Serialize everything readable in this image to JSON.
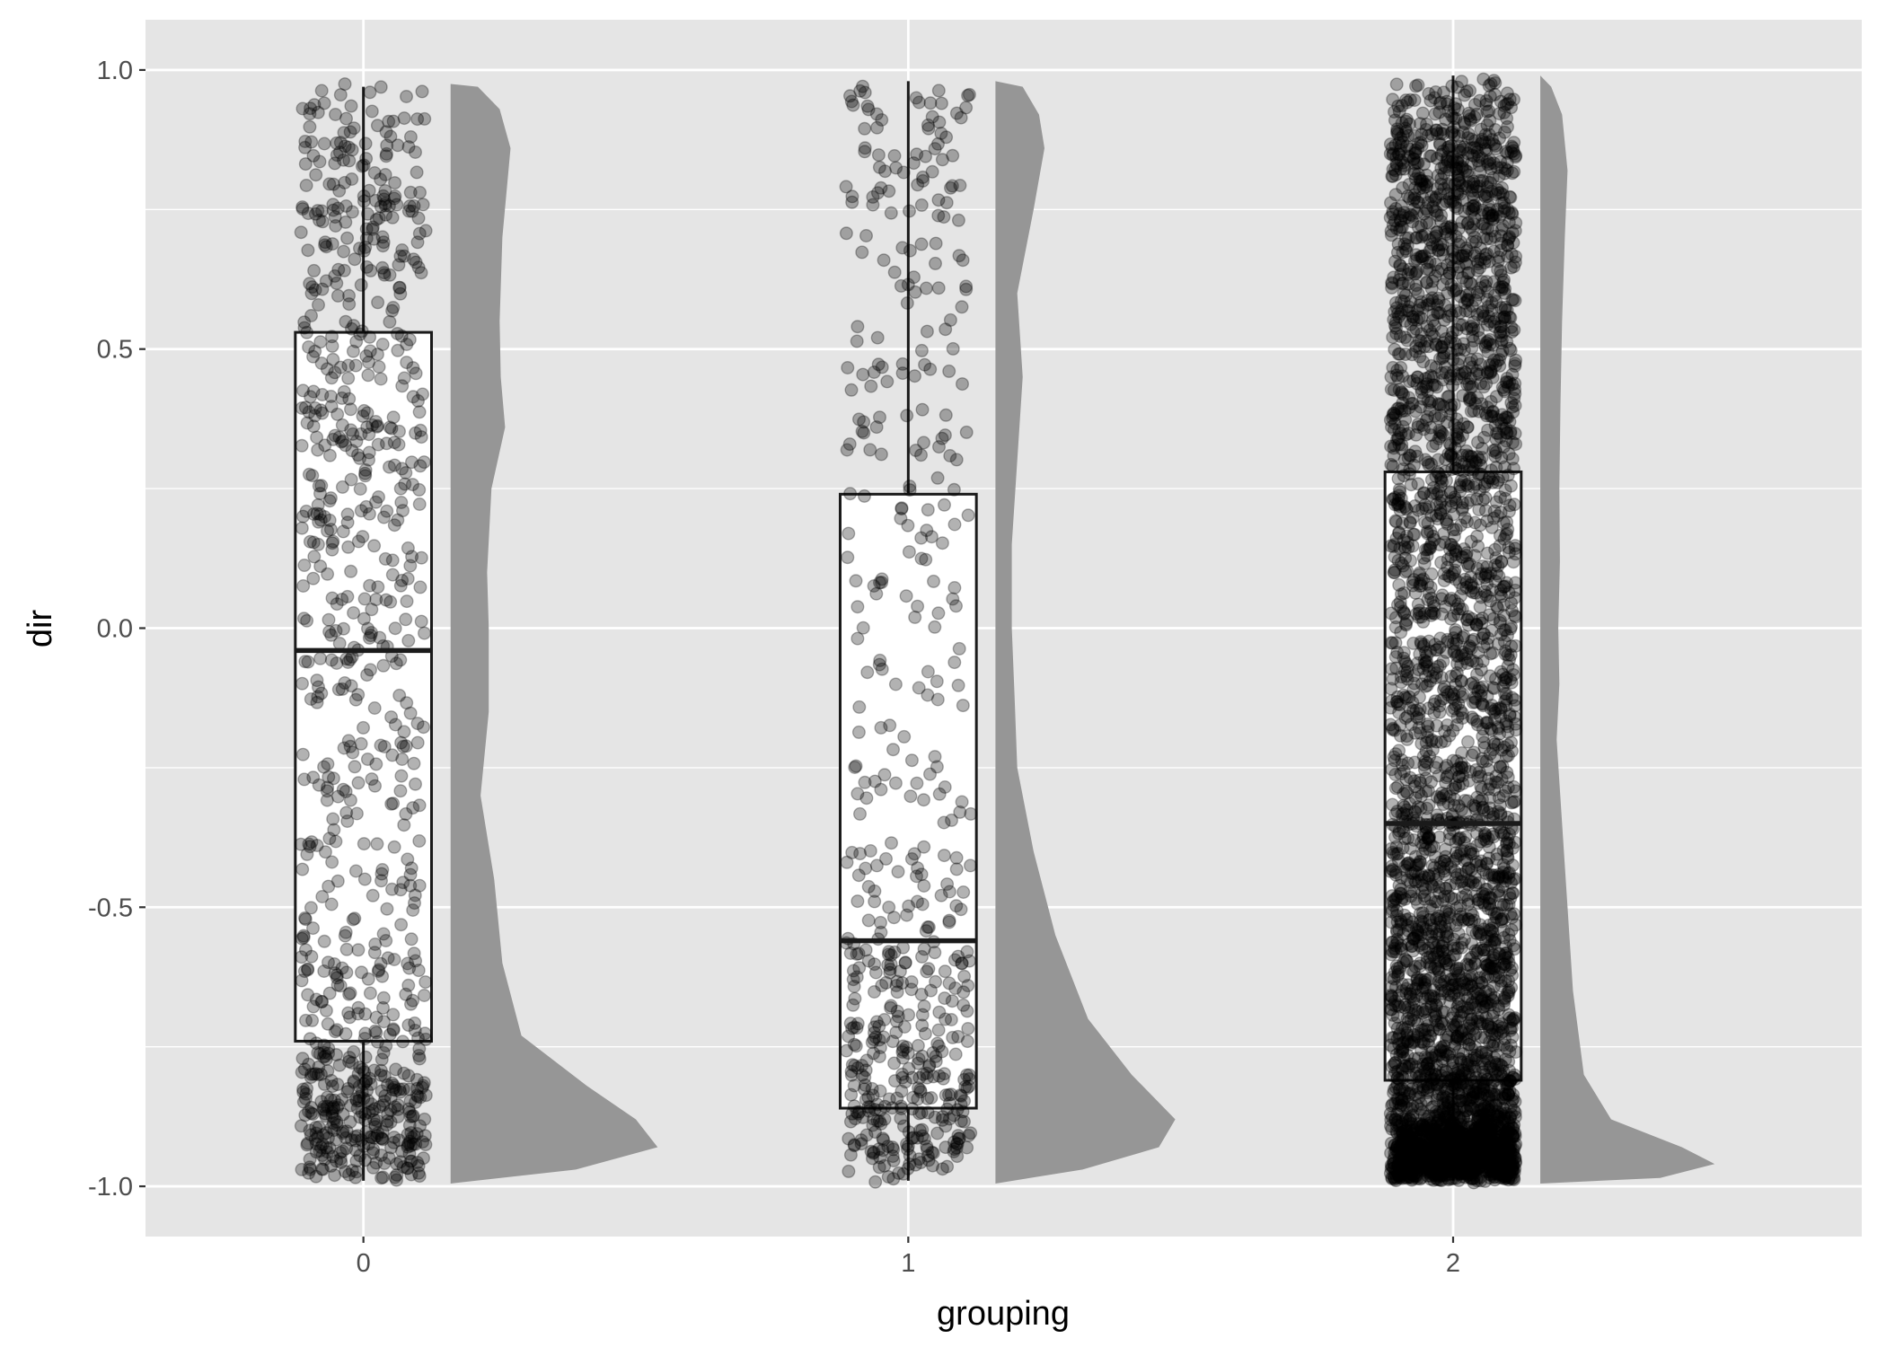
{
  "chart_data": {
    "type": "raincloud",
    "xlabel": "grouping",
    "ylabel": "dir",
    "ylim": [
      -1.09,
      1.09
    ],
    "y_ticks": [
      -1.0,
      -0.5,
      0.0,
      0.5,
      1.0
    ],
    "y_tick_labels": [
      "-1.0",
      "-0.5",
      "0.0",
      "0.5",
      "1.0"
    ],
    "categories": [
      "0",
      "1",
      "2"
    ],
    "grid": true,
    "panel_background": "#e5e5e5",
    "grid_color": "#ffffff",
    "point_color": "#000000",
    "point_alpha": 0.3,
    "violin_fill": "#969696",
    "box_fill": "#ffffff",
    "box_stroke": "#1a1a1a",
    "groups": [
      {
        "category": "0",
        "boxplot": {
          "whisker_low": -0.99,
          "q1": -0.74,
          "median": -0.04,
          "q3": 0.53,
          "whisker_high": 0.97
        },
        "n_points": 900,
        "density_profile": [
          [
            -0.995,
            0.0
          ],
          [
            -0.97,
            0.23
          ],
          [
            -0.93,
            0.38
          ],
          [
            -0.88,
            0.34
          ],
          [
            -0.82,
            0.25
          ],
          [
            -0.73,
            0.13
          ],
          [
            -0.6,
            0.095
          ],
          [
            -0.45,
            0.08
          ],
          [
            -0.3,
            0.055
          ],
          [
            -0.15,
            0.07
          ],
          [
            0.0,
            0.07
          ],
          [
            0.1,
            0.067
          ],
          [
            0.25,
            0.075
          ],
          [
            0.36,
            0.1
          ],
          [
            0.45,
            0.092
          ],
          [
            0.55,
            0.09
          ],
          [
            0.7,
            0.095
          ],
          [
            0.86,
            0.11
          ],
          [
            0.93,
            0.09
          ],
          [
            0.97,
            0.05
          ],
          [
            0.975,
            0.0
          ]
        ]
      },
      {
        "category": "1",
        "boxplot": {
          "whisker_low": -0.99,
          "q1": -0.86,
          "median": -0.56,
          "q3": 0.24,
          "whisker_high": 0.98
        },
        "n_points": 560,
        "density_profile": [
          [
            -0.995,
            0.0
          ],
          [
            -0.97,
            0.16
          ],
          [
            -0.93,
            0.3
          ],
          [
            -0.88,
            0.33
          ],
          [
            -0.8,
            0.25
          ],
          [
            -0.7,
            0.17
          ],
          [
            -0.55,
            0.11
          ],
          [
            -0.4,
            0.07
          ],
          [
            -0.25,
            0.04
          ],
          [
            -0.12,
            0.035
          ],
          [
            0.0,
            0.03
          ],
          [
            0.15,
            0.03
          ],
          [
            0.3,
            0.04
          ],
          [
            0.45,
            0.05
          ],
          [
            0.6,
            0.04
          ],
          [
            0.75,
            0.07
          ],
          [
            0.86,
            0.09
          ],
          [
            0.92,
            0.08
          ],
          [
            0.97,
            0.05
          ],
          [
            0.98,
            0.0
          ]
        ]
      },
      {
        "category": "2",
        "boxplot": {
          "whisker_low": -0.99,
          "q1": -0.81,
          "median": -0.35,
          "q3": 0.28,
          "whisker_high": 0.99
        },
        "n_points": 4200,
        "density_profile": [
          [
            -0.995,
            0.0
          ],
          [
            -0.985,
            0.22
          ],
          [
            -0.96,
            0.32
          ],
          [
            -0.93,
            0.26
          ],
          [
            -0.88,
            0.13
          ],
          [
            -0.8,
            0.08
          ],
          [
            -0.65,
            0.06
          ],
          [
            -0.5,
            0.05
          ],
          [
            -0.35,
            0.04
          ],
          [
            -0.2,
            0.03
          ],
          [
            -0.1,
            0.035
          ],
          [
            0.0,
            0.033
          ],
          [
            0.12,
            0.036
          ],
          [
            0.25,
            0.035
          ],
          [
            0.4,
            0.037
          ],
          [
            0.55,
            0.04
          ],
          [
            0.7,
            0.045
          ],
          [
            0.82,
            0.05
          ],
          [
            0.92,
            0.04
          ],
          [
            0.97,
            0.02
          ],
          [
            0.99,
            0.0
          ]
        ]
      }
    ]
  }
}
